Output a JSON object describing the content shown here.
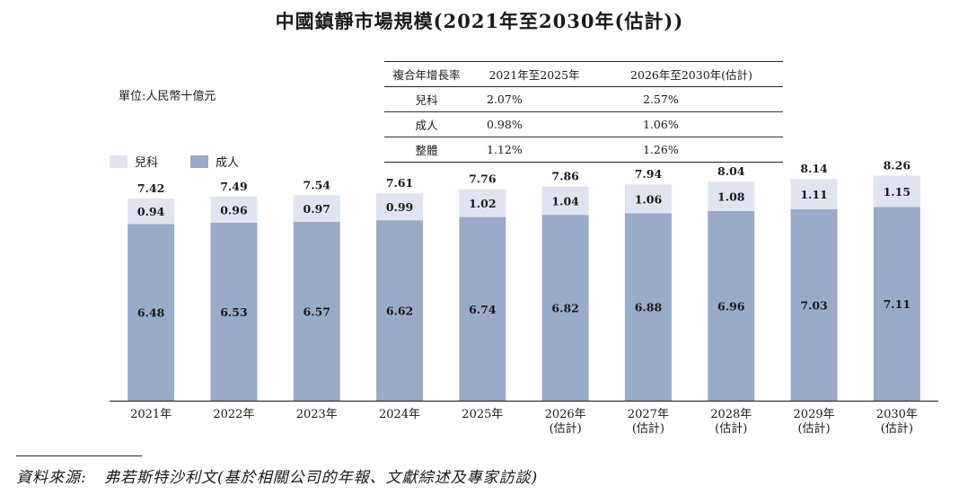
{
  "title": "中國鎮靜市場規模(2021年至2030年(估計))",
  "unit_label": "單位:人民幣十億元",
  "legend": [
    {
      "name": "兒科",
      "color": "#dfe4f0"
    },
    {
      "name": "成人",
      "color": "#9aaac9"
    }
  ],
  "growth_table": {
    "headers": [
      "複合年增長率",
      "2021年至2025年",
      "2026年至2030年(估計)"
    ],
    "rows": [
      {
        "label": "兒科",
        "v1": "2.07%",
        "v2": "2.57%"
      },
      {
        "label": "成人",
        "v1": "0.98%",
        "v2": "1.06%"
      },
      {
        "label": "整體",
        "v1": "1.12%",
        "v2": "1.26%"
      }
    ]
  },
  "chart_data": {
    "type": "bar",
    "stacked": true,
    "categories": [
      "2021年",
      "2022年",
      "2023年",
      "2024年",
      "2025年",
      "2026年",
      "2027年",
      "2028年",
      "2029年",
      "2030年"
    ],
    "category_notes": [
      "",
      "",
      "",
      "",
      "",
      "(估計)",
      "(估計)",
      "(估計)",
      "(估計)",
      "(估計)"
    ],
    "series": [
      {
        "name": "成人",
        "color": "#9aaac9",
        "values": [
          6.48,
          6.53,
          6.57,
          6.62,
          6.74,
          6.82,
          6.88,
          6.96,
          7.03,
          7.11
        ]
      },
      {
        "name": "兒科",
        "color": "#dfe4f0",
        "values": [
          0.94,
          0.96,
          0.97,
          0.99,
          1.02,
          1.04,
          1.06,
          1.08,
          1.11,
          1.15
        ]
      }
    ],
    "totals": [
      7.42,
      7.49,
      7.54,
      7.61,
      7.76,
      7.86,
      7.94,
      8.04,
      8.14,
      8.26
    ],
    "ylim": [
      0,
      9.1
    ],
    "grid": false,
    "legend_position": "top-left"
  },
  "source": {
    "label": "資料來源:",
    "text": "弗若斯特沙利文(基於相關公司的年報、文獻綜述及專家訪談)"
  }
}
